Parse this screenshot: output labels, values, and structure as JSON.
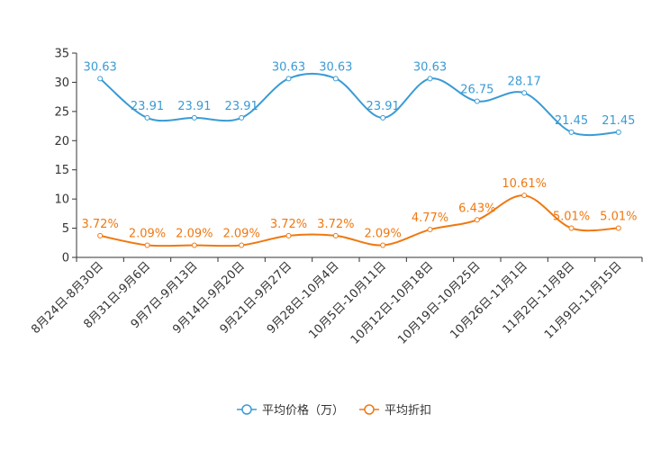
{
  "chart_data": {
    "type": "line",
    "categories": [
      "8月24日-8月30日",
      "8月31日-9月6日",
      "9月7日-9月13日",
      "9月14日-9月20日",
      "9月21日-9月27日",
      "9月28日-10月4日",
      "10月5日-10月11日",
      "10月12日-10月18日",
      "10月19日-10月25日",
      "10月26日-11月1日",
      "11月2日-11月8日",
      "11月9日-11月15日"
    ],
    "series": [
      {
        "name": "平均价格（万）",
        "color": "#3a9bd5",
        "values": [
          30.63,
          23.91,
          23.91,
          23.91,
          30.63,
          30.63,
          23.91,
          30.63,
          26.75,
          28.17,
          21.45,
          21.45
        ],
        "labels": [
          "30.63",
          "23.91",
          "23.91",
          "23.91",
          "30.63",
          "30.63",
          "23.91",
          "30.63",
          "26.75",
          "28.17",
          "21.45",
          "21.45"
        ]
      },
      {
        "name": "平均折扣",
        "color": "#f07810",
        "values": [
          3.72,
          2.09,
          2.09,
          2.09,
          3.72,
          3.72,
          2.09,
          4.77,
          6.43,
          10.61,
          5.01,
          5.01
        ],
        "labels": [
          "3.72%",
          "2.09%",
          "2.09%",
          "2.09%",
          "3.72%",
          "3.72%",
          "2.09%",
          "4.77%",
          "6.43%",
          "10.61%",
          "5.01%",
          "5.01%"
        ]
      }
    ],
    "yticks": [
      "0",
      "5",
      "10",
      "15",
      "20",
      "25",
      "30",
      "35"
    ],
    "ylim": [
      0,
      35
    ],
    "title": "",
    "xlabel": "",
    "ylabel": "",
    "grid": false,
    "legend_position": "bottom-center"
  }
}
